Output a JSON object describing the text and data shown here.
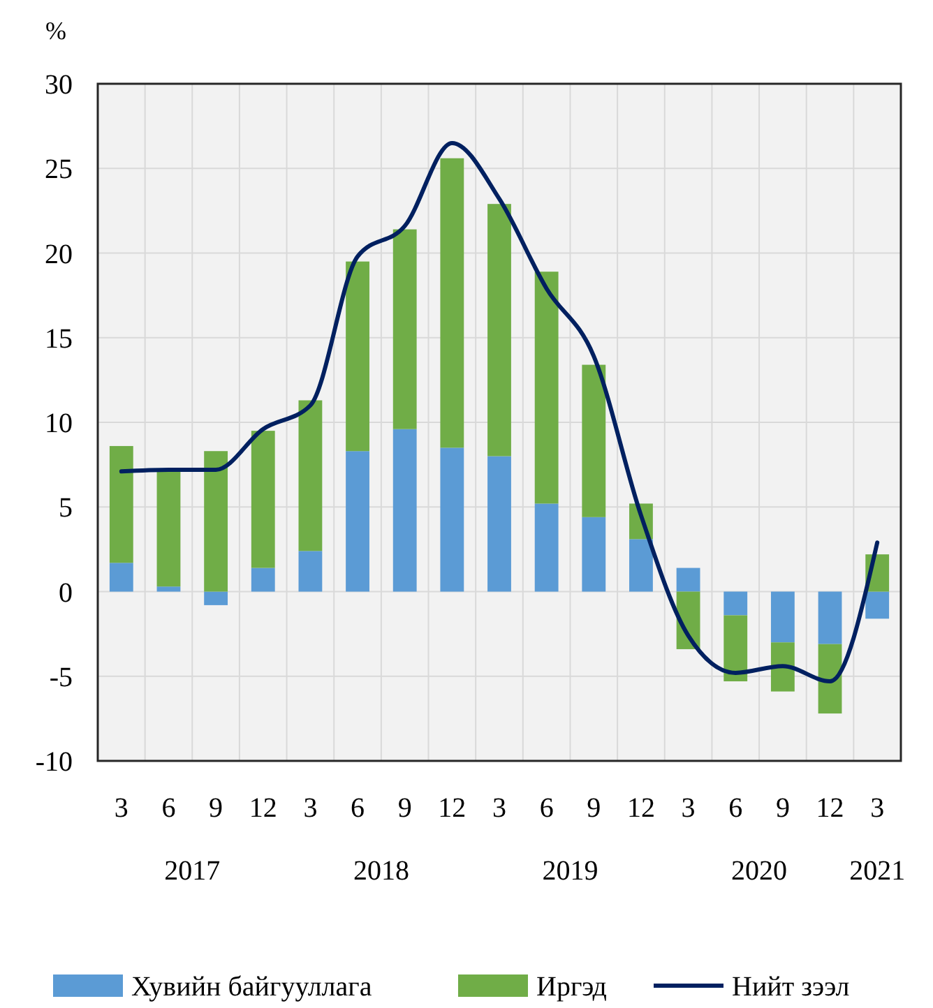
{
  "chart_data": {
    "type": "bar",
    "stacked": true,
    "ylabel": "%",
    "categories": [
      "3",
      "6",
      "9",
      "12",
      "3",
      "6",
      "9",
      "12",
      "3",
      "6",
      "9",
      "12",
      "3",
      "6",
      "9",
      "12",
      "3"
    ],
    "annotations": [
      "2017",
      "2018",
      "2019",
      "2020",
      "2021"
    ],
    "ylim": [
      -10,
      30
    ],
    "yticks": [
      -10,
      -5,
      0,
      5,
      10,
      15,
      20,
      25,
      30
    ],
    "grid": true,
    "legend": "bottom",
    "series": [
      {
        "name": "Хувийн байгууллага",
        "color": "#5b9bd5",
        "values": [
          1.7,
          0.3,
          -0.8,
          1.4,
          2.4,
          8.3,
          9.6,
          8.5,
          8.0,
          5.2,
          4.4,
          3.1,
          1.4,
          -1.4,
          -3.0,
          -3.1,
          -1.6
        ]
      },
      {
        "name": "Иргэд",
        "color": "#70ad47",
        "values": [
          6.9,
          6.8,
          8.3,
          8.1,
          8.9,
          11.2,
          11.8,
          17.1,
          14.9,
          13.7,
          9.0,
          2.1,
          -3.4,
          -3.9,
          -2.9,
          -4.1,
          2.2
        ]
      },
      {
        "name": "Нийт зээл",
        "type": "line",
        "color": "#002060",
        "values": [
          7.1,
          7.2,
          7.2,
          9.6,
          11.0,
          19.8,
          21.6,
          26.5,
          23.2,
          17.9,
          13.9,
          4.5,
          -2.6,
          -4.8,
          -4.4,
          -5.3,
          2.9
        ]
      }
    ]
  }
}
